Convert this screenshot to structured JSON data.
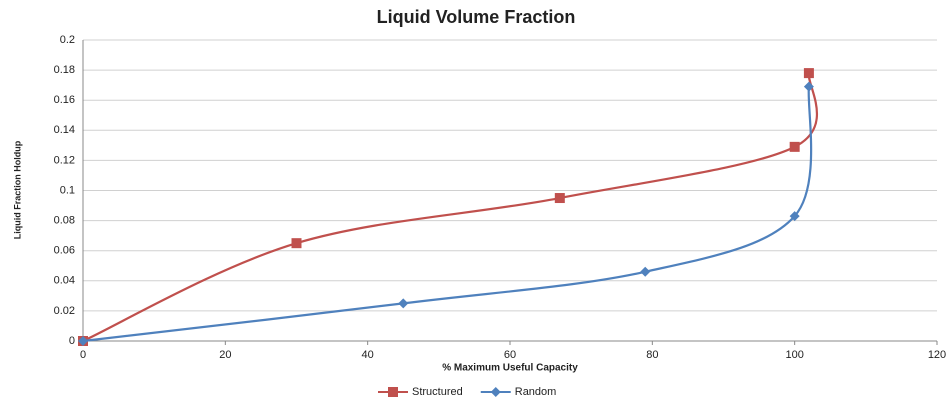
{
  "chart_data": {
    "type": "scatter-smooth",
    "title": "Liquid Volume Fraction",
    "x_label": "% Maximum Useful Capacity",
    "y_label": "Liquid Fraction Holdup",
    "series": [
      {
        "name": "Structured",
        "color": "#c0504d",
        "marker": "square",
        "x": [
          0,
          30,
          67,
          100,
          102
        ],
        "values": [
          0,
          0.065,
          0.095,
          0.129,
          0.178
        ]
      },
      {
        "name": "Random",
        "color": "#4f81bd",
        "marker": "diamond",
        "x": [
          0,
          45,
          79,
          100,
          102
        ],
        "values": [
          0,
          0.025,
          0.046,
          0.083,
          0.169
        ]
      }
    ],
    "xlim": [
      0,
      120
    ],
    "xticks": [
      0,
      20,
      40,
      60,
      80,
      100,
      120
    ],
    "ylim": [
      0,
      0.2
    ],
    "yticks": [
      0,
      0.02,
      0.04,
      0.06,
      0.08,
      0.1,
      0.12,
      0.14,
      0.16,
      0.18,
      0.2
    ],
    "grid": true,
    "legend": "bottom"
  }
}
